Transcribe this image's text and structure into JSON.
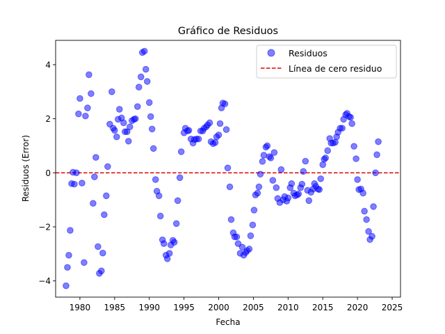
{
  "chart_data": {
    "type": "scatter",
    "title": "Gráfico de Residuos",
    "xlabel": "Fecha",
    "ylabel": "Residuos (Error)",
    "xlim": [
      1976.5,
      2026.2
    ],
    "ylim": [
      -4.6,
      4.9
    ],
    "x_ticks": [
      1980,
      1985,
      1990,
      1995,
      2000,
      2005,
      2010,
      2015,
      2020,
      2025
    ],
    "y_ticks": [
      -4,
      -2,
      0,
      2,
      4
    ],
    "grid": false,
    "legend_position": "top-right",
    "legend": [
      {
        "label": "Residuos",
        "kind": "marker",
        "color": "#0000ff"
      },
      {
        "label": "Línea de cero residuo",
        "kind": "dashed-line",
        "color": "#dd0000"
      }
    ],
    "reference_line": {
      "y": 0,
      "color": "#dd0000",
      "style": "dashed"
    },
    "series": [
      {
        "name": "Residuos",
        "color": "#0000ff",
        "points": [
          [
            1978.0,
            -4.18
          ],
          [
            1978.2,
            -3.5
          ],
          [
            1978.4,
            -3.05
          ],
          [
            1978.6,
            -2.13
          ],
          [
            1978.8,
            -0.4
          ],
          [
            1979.0,
            0.02
          ],
          [
            1979.2,
            -0.42
          ],
          [
            1979.5,
            0.0
          ],
          [
            1979.8,
            2.18
          ],
          [
            1980.0,
            2.75
          ],
          [
            1980.3,
            -0.38
          ],
          [
            1980.6,
            -3.32
          ],
          [
            1980.8,
            2.1
          ],
          [
            1981.1,
            2.4
          ],
          [
            1981.3,
            3.63
          ],
          [
            1981.6,
            2.93
          ],
          [
            1981.9,
            -1.13
          ],
          [
            1982.1,
            -0.15
          ],
          [
            1982.3,
            0.57
          ],
          [
            1982.6,
            -2.73
          ],
          [
            1982.8,
            -3.72
          ],
          [
            1983.1,
            -3.63
          ],
          [
            1983.3,
            -2.97
          ],
          [
            1983.5,
            -1.55
          ],
          [
            1983.8,
            -0.85
          ],
          [
            1984.0,
            0.23
          ],
          [
            1984.3,
            1.8
          ],
          [
            1984.6,
            3.0
          ],
          [
            1984.8,
            1.65
          ],
          [
            1985.0,
            1.57
          ],
          [
            1985.3,
            1.33
          ],
          [
            1985.5,
            1.98
          ],
          [
            1985.7,
            2.35
          ],
          [
            1986.0,
            2.03
          ],
          [
            1986.3,
            1.85
          ],
          [
            1986.5,
            1.52
          ],
          [
            1986.8,
            1.52
          ],
          [
            1987.0,
            1.17
          ],
          [
            1987.2,
            1.7
          ],
          [
            1987.5,
            1.93
          ],
          [
            1987.8,
            1.98
          ],
          [
            1988.0,
            2.0
          ],
          [
            1988.3,
            2.45
          ],
          [
            1988.5,
            3.17
          ],
          [
            1988.8,
            3.55
          ],
          [
            1989.0,
            4.45
          ],
          [
            1989.3,
            4.5
          ],
          [
            1989.5,
            3.83
          ],
          [
            1989.7,
            3.38
          ],
          [
            1990.0,
            2.6
          ],
          [
            1990.2,
            2.08
          ],
          [
            1990.4,
            1.62
          ],
          [
            1990.6,
            0.9
          ],
          [
            1990.9,
            -0.25
          ],
          [
            1991.1,
            -0.68
          ],
          [
            1991.4,
            -0.85
          ],
          [
            1991.6,
            -1.6
          ],
          [
            1991.9,
            -2.48
          ],
          [
            1992.1,
            -2.62
          ],
          [
            1992.4,
            -3.05
          ],
          [
            1992.6,
            -3.18
          ],
          [
            1992.9,
            -2.98
          ],
          [
            1993.1,
            -2.67
          ],
          [
            1993.4,
            -2.5
          ],
          [
            1993.6,
            -2.57
          ],
          [
            1993.9,
            -1.88
          ],
          [
            1994.1,
            -1.03
          ],
          [
            1994.4,
            -0.18
          ],
          [
            1994.6,
            0.78
          ],
          [
            1995.0,
            1.48
          ],
          [
            1995.2,
            1.65
          ],
          [
            1995.5,
            1.55
          ],
          [
            1995.7,
            1.57
          ],
          [
            1996.0,
            1.25
          ],
          [
            1996.3,
            1.1
          ],
          [
            1996.5,
            1.23
          ],
          [
            1996.8,
            1.25
          ],
          [
            1997.1,
            1.25
          ],
          [
            1997.4,
            1.55
          ],
          [
            1997.7,
            1.55
          ],
          [
            1997.9,
            1.65
          ],
          [
            1998.2,
            1.7
          ],
          [
            1998.4,
            1.77
          ],
          [
            1998.7,
            1.85
          ],
          [
            1998.9,
            1.15
          ],
          [
            1999.2,
            1.08
          ],
          [
            1999.5,
            1.12
          ],
          [
            1999.7,
            1.33
          ],
          [
            2000.0,
            1.4
          ],
          [
            2000.2,
            1.82
          ],
          [
            2000.4,
            2.4
          ],
          [
            2000.6,
            2.58
          ],
          [
            2000.9,
            2.55
          ],
          [
            2001.1,
            1.6
          ],
          [
            2001.3,
            0.18
          ],
          [
            2001.6,
            -0.52
          ],
          [
            2001.8,
            -1.73
          ],
          [
            2002.1,
            -2.22
          ],
          [
            2002.3,
            -2.37
          ],
          [
            2002.6,
            -2.37
          ],
          [
            2002.8,
            -2.62
          ],
          [
            2003.1,
            -2.98
          ],
          [
            2003.4,
            -2.75
          ],
          [
            2003.6,
            -3.05
          ],
          [
            2003.9,
            -2.95
          ],
          [
            2004.1,
            -2.88
          ],
          [
            2004.4,
            -2.82
          ],
          [
            2004.6,
            -2.33
          ],
          [
            2004.9,
            -1.93
          ],
          [
            2005.1,
            -1.38
          ],
          [
            2005.3,
            -0.82
          ],
          [
            2005.6,
            -0.75
          ],
          [
            2005.8,
            -0.52
          ],
          [
            2006.0,
            -0.05
          ],
          [
            2006.3,
            0.42
          ],
          [
            2006.5,
            0.65
          ],
          [
            2006.8,
            0.95
          ],
          [
            2007.0,
            1.0
          ],
          [
            2007.3,
            0.6
          ],
          [
            2007.5,
            0.55
          ],
          [
            2007.8,
            -0.28
          ],
          [
            2008.0,
            0.75
          ],
          [
            2008.3,
            -0.55
          ],
          [
            2008.5,
            -0.95
          ],
          [
            2008.8,
            -1.1
          ],
          [
            2009.0,
            0.12
          ],
          [
            2009.3,
            -1.0
          ],
          [
            2009.5,
            -0.88
          ],
          [
            2009.8,
            -1.05
          ],
          [
            2010.0,
            -0.93
          ],
          [
            2010.3,
            -0.55
          ],
          [
            2010.5,
            -0.4
          ],
          [
            2010.8,
            -0.75
          ],
          [
            2011.0,
            -0.85
          ],
          [
            2011.3,
            -0.82
          ],
          [
            2011.5,
            -0.78
          ],
          [
            2011.8,
            -0.55
          ],
          [
            2012.0,
            -0.42
          ],
          [
            2012.2,
            0.05
          ],
          [
            2012.5,
            0.43
          ],
          [
            2012.8,
            -0.65
          ],
          [
            2013.0,
            -1.03
          ],
          [
            2013.3,
            -0.72
          ],
          [
            2013.6,
            -0.6
          ],
          [
            2013.8,
            -0.4
          ],
          [
            2014.0,
            -0.5
          ],
          [
            2014.3,
            -0.6
          ],
          [
            2014.5,
            -0.62
          ],
          [
            2014.7,
            -0.22
          ],
          [
            2015.0,
            0.3
          ],
          [
            2015.2,
            0.5
          ],
          [
            2015.4,
            0.55
          ],
          [
            2015.7,
            0.82
          ],
          [
            2016.0,
            1.27
          ],
          [
            2016.2,
            1.1
          ],
          [
            2016.5,
            1.1
          ],
          [
            2016.8,
            1.13
          ],
          [
            2017.0,
            1.33
          ],
          [
            2017.2,
            1.5
          ],
          [
            2017.5,
            1.65
          ],
          [
            2017.8,
            1.65
          ],
          [
            2018.0,
            1.98
          ],
          [
            2018.3,
            2.15
          ],
          [
            2018.5,
            2.2
          ],
          [
            2018.8,
            2.08
          ],
          [
            2019.0,
            2.05
          ],
          [
            2019.2,
            1.82
          ],
          [
            2019.5,
            0.98
          ],
          [
            2019.8,
            0.52
          ],
          [
            2020.0,
            -0.25
          ],
          [
            2020.2,
            -0.62
          ],
          [
            2020.5,
            -0.6
          ],
          [
            2020.8,
            -0.75
          ],
          [
            2021.0,
            -1.42
          ],
          [
            2021.3,
            -1.73
          ],
          [
            2021.6,
            -2.17
          ],
          [
            2021.8,
            -2.47
          ],
          [
            2022.1,
            -2.35
          ],
          [
            2022.3,
            -1.25
          ],
          [
            2022.6,
            0.0
          ],
          [
            2022.8,
            0.67
          ],
          [
            2023.0,
            1.15
          ]
        ]
      }
    ]
  }
}
